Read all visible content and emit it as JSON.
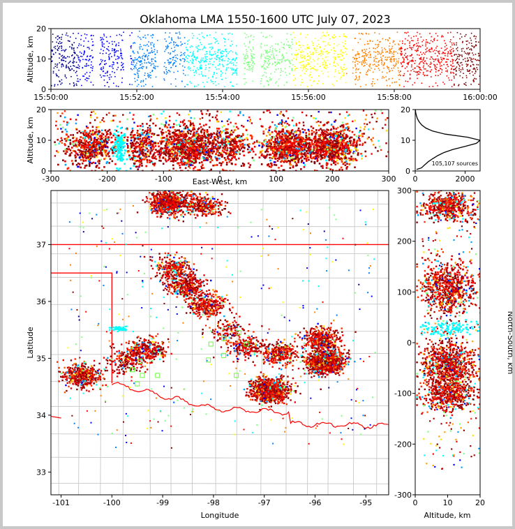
{
  "chart_data": [
    {
      "type": "scatter",
      "panel": "altitude-vs-time",
      "title": "Oklahoma LMA 1550-1600 UTC July 07, 2023",
      "xlabel": "",
      "ylabel": "Altitude, km",
      "xlim": [
        "15:50:00",
        "16:00:00"
      ],
      "ylim": [
        0,
        20
      ],
      "x_ticks": [
        "15:50:00",
        "15:52:00",
        "15:54:00",
        "15:56:00",
        "15:58:00",
        "16:00:00"
      ],
      "y_ticks": [
        "0",
        "10",
        "20"
      ],
      "color_by": "time",
      "colormap": [
        "#00008f",
        "#0000ff",
        "#0080ff",
        "#00ffff",
        "#80ff80",
        "#ffff00",
        "#ff8000",
        "#ff0000",
        "#800000"
      ],
      "gaps_minutes": [
        1.05,
        1.75,
        2.55,
        4.4,
        4.8,
        6.95
      ],
      "altitude_band_km": [
        1,
        19
      ]
    },
    {
      "type": "scatter",
      "panel": "altitude-vs-east-west",
      "xlabel": "East-West, km",
      "ylabel": "Altitude, km",
      "xlim": [
        -300,
        300
      ],
      "ylim": [
        0,
        20
      ],
      "x_ticks": [
        "-300",
        "-200",
        "-100",
        "0",
        "100",
        "200",
        "300"
      ],
      "y_ticks": [
        "0",
        "10",
        "20"
      ],
      "clusters_km": [
        {
          "x": -230,
          "spread": 45,
          "count": 500
        },
        {
          "x": -180,
          "spread": 10,
          "count": 120,
          "color": "#00ffff"
        },
        {
          "x": -140,
          "spread": 25,
          "count": 250
        },
        {
          "x": -60,
          "spread": 50,
          "count": 900
        },
        {
          "x": 15,
          "spread": 35,
          "count": 300
        },
        {
          "x": 120,
          "spread": 40,
          "count": 700
        },
        {
          "x": 200,
          "spread": 40,
          "count": 700
        }
      ]
    },
    {
      "type": "histogram",
      "panel": "source-count-vs-altitude",
      "xlim": [
        0,
        2600
      ],
      "ylim": [
        0,
        20
      ],
      "x_ticks": [
        "0",
        "2000"
      ],
      "y_ticks": [
        "0",
        "10",
        "20"
      ],
      "annotation": "105,107 sources",
      "profile": [
        [
          0.5,
          60
        ],
        [
          1,
          250
        ],
        [
          2,
          380
        ],
        [
          3,
          520
        ],
        [
          4,
          700
        ],
        [
          5,
          900
        ],
        [
          6,
          1150
        ],
        [
          7,
          1500
        ],
        [
          8,
          2000
        ],
        [
          9,
          2450
        ],
        [
          10,
          2600
        ],
        [
          11,
          2100
        ],
        [
          12,
          1200
        ],
        [
          13,
          700
        ],
        [
          14,
          420
        ],
        [
          15,
          260
        ],
        [
          16,
          160
        ],
        [
          17,
          90
        ],
        [
          18,
          50
        ],
        [
          19,
          20
        ],
        [
          20,
          5
        ]
      ]
    },
    {
      "type": "scatter",
      "panel": "plan-view-map",
      "xlabel": "Longitude",
      "ylabel": "Latitude",
      "xlim": [
        -101.2,
        -94.55
      ],
      "ylim": [
        32.6,
        37.95
      ],
      "x_ticks": [
        "-101",
        "-100",
        "-99",
        "-98",
        "-97",
        "-96",
        "-95"
      ],
      "y_ticks": [
        "33",
        "34",
        "35",
        "36",
        "37"
      ],
      "state_boundary_color": "#ff0000",
      "county_line_color": "#c8c8c8",
      "station_marker_color": "#66ff33",
      "clusters": [
        {
          "lon": -98.9,
          "lat": 37.75,
          "count": 700
        },
        {
          "lon": -98.2,
          "lat": 37.7,
          "count": 300
        },
        {
          "lon": -98.85,
          "lat": 36.6,
          "count": 250
        },
        {
          "lon": -98.55,
          "lat": 36.3,
          "count": 350
        },
        {
          "lon": -98.15,
          "lat": 35.95,
          "count": 350
        },
        {
          "lon": -97.75,
          "lat": 35.5,
          "count": 120
        },
        {
          "lon": -96.9,
          "lat": 34.45,
          "count": 900
        },
        {
          "lon": -95.8,
          "lat": 34.95,
          "count": 1000
        },
        {
          "lon": -95.9,
          "lat": 35.35,
          "count": 400
        },
        {
          "lon": -100.6,
          "lat": 34.7,
          "count": 450
        },
        {
          "lon": -99.35,
          "lat": 35.15,
          "count": 350
        },
        {
          "lon": -99.75,
          "lat": 34.95,
          "count": 150
        },
        {
          "lon": -96.7,
          "lat": 35.1,
          "count": 300
        },
        {
          "lon": -97.4,
          "lat": 35.2,
          "count": 200
        }
      ],
      "stations": [
        [
          -99.45,
          34.95
        ],
        [
          -99.6,
          34.8
        ],
        [
          -99.4,
          34.7
        ],
        [
          -99.1,
          34.7
        ],
        [
          -99.5,
          34.55
        ],
        [
          -98.05,
          35.25
        ],
        [
          -97.8,
          35.35
        ],
        [
          -97.5,
          35.45
        ],
        [
          -97.35,
          35.25
        ],
        [
          -97.8,
          35.05
        ],
        [
          -98.1,
          34.97
        ],
        [
          -97.55,
          34.7
        ]
      ]
    },
    {
      "type": "scatter",
      "panel": "north-south-vs-altitude",
      "xlabel": "Altitude, km",
      "ylabel": "North-South, km",
      "xlim": [
        0,
        20
      ],
      "ylim": [
        -300,
        300
      ],
      "x_ticks": [
        "0",
        "10",
        "20"
      ],
      "y_ticks": [
        "-300",
        "-200",
        "-100",
        "0",
        "100",
        "200",
        "300"
      ],
      "clusters_km": [
        {
          "y": 270,
          "spread": 25,
          "count": 500
        },
        {
          "y": 110,
          "spread": 45,
          "count": 700
        },
        {
          "y": -40,
          "spread": 40,
          "count": 800
        },
        {
          "y": -100,
          "spread": 30,
          "count": 500
        },
        {
          "y": 30,
          "spread": 12,
          "count": 120,
          "color": "#00ffff"
        }
      ]
    }
  ]
}
